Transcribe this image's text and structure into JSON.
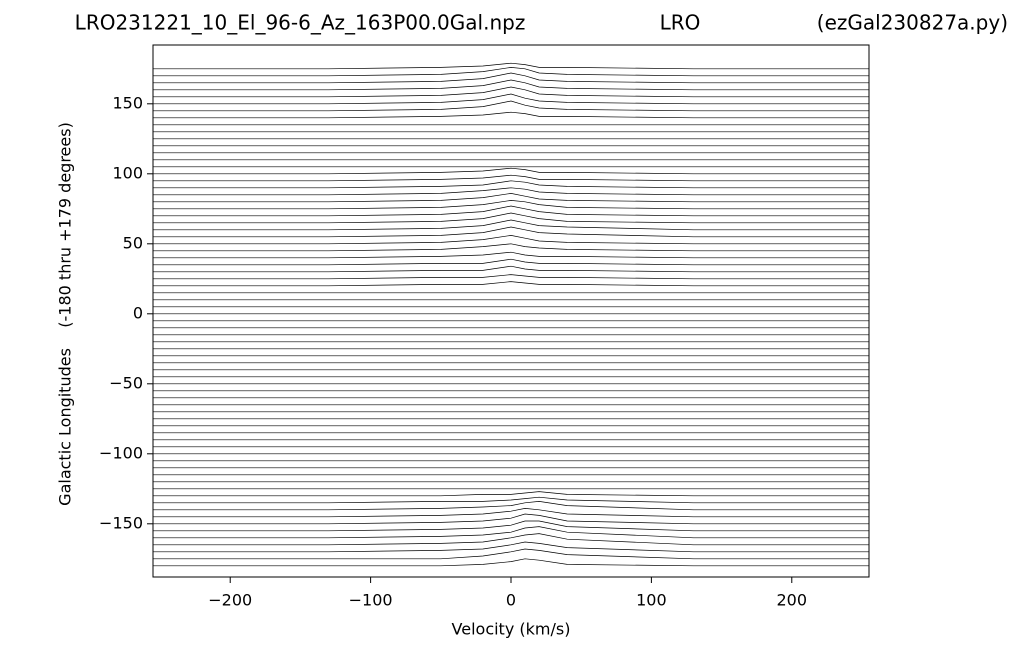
{
  "chart_data": {
    "type": "ridgeline",
    "title": "LRO231221_10_El_96-6_Az_163P00.0Gal.npz",
    "subtitle": "LRO",
    "annotation": "(ezGal230827a.py)",
    "xlabel": "Velocity (km/s)",
    "ylabel": "Galactic Longitudes    (-180 thru +179 degrees)",
    "color": "#000000",
    "xlim": [
      -255,
      255
    ],
    "ylim": [
      -188,
      192
    ],
    "xticks": [
      {
        "value": -200,
        "label": "−200"
      },
      {
        "value": -100,
        "label": "−100"
      },
      0,
      100,
      200
    ],
    "yticks": [
      {
        "value": -150,
        "label": "−150"
      },
      {
        "value": -100,
        "label": "−100"
      },
      {
        "value": -50,
        "label": "−50"
      },
      0,
      50,
      100,
      150
    ],
    "x": [
      -255,
      -130,
      -50,
      -20,
      0,
      10,
      20,
      40,
      130,
      255
    ],
    "series": [
      {
        "values": [
          -180,
          -180,
          -180,
          -179,
          -177,
          -175,
          -176,
          -179,
          -180,
          -180
        ]
      },
      {
        "values": [
          -175,
          -175,
          -175,
          -173,
          -170,
          -168,
          -169,
          -172,
          -175,
          -175
        ]
      },
      {
        "values": [
          -170,
          -170,
          -169,
          -168,
          -165,
          -163,
          -164,
          -167,
          -170,
          -170
        ]
      },
      {
        "values": [
          -165,
          -165,
          -164,
          -163,
          -160,
          -158,
          -157,
          -161,
          -165,
          -165
        ]
      },
      {
        "values": [
          -160,
          -160,
          -159,
          -158,
          -156,
          -153,
          -152,
          -156,
          -160,
          -160
        ]
      },
      {
        "values": [
          -155,
          -155,
          -154,
          -153,
          -151,
          -148,
          -148,
          -152,
          -155,
          -155
        ]
      },
      {
        "values": [
          -150,
          -150,
          -149,
          -148,
          -146,
          -143,
          -144,
          -148,
          -150,
          -150
        ]
      },
      {
        "values": [
          -145,
          -145,
          -144,
          -143,
          -141,
          -139,
          -140,
          -143,
          -145,
          -145
        ]
      },
      {
        "values": [
          -140,
          -140,
          -139,
          -138,
          -137,
          -135,
          -134,
          -137,
          -140,
          -140
        ]
      },
      {
        "values": [
          -135,
          -135,
          -134,
          -134,
          -133,
          -132,
          -131,
          -133,
          -135,
          -135
        ]
      },
      {
        "values": [
          -130,
          -130,
          -130,
          -129,
          -129,
          -128,
          -127,
          -129,
          -130,
          -130
        ]
      },
      {
        "values": [
          -125,
          -125,
          -125,
          -125,
          -125,
          -125,
          -125,
          -125,
          -125,
          -125
        ]
      },
      {
        "values": [
          -120,
          -120,
          -120,
          -120,
          -120,
          -120,
          -120,
          -120,
          -120,
          -120
        ]
      },
      {
        "values": [
          -115,
          -115,
          -115,
          -115,
          -115,
          -115,
          -115,
          -115,
          -115,
          -115
        ]
      },
      {
        "values": [
          -110,
          -110,
          -110,
          -110,
          -110,
          -110,
          -110,
          -110,
          -110,
          -110
        ]
      },
      {
        "values": [
          -105,
          -105,
          -105,
          -105,
          -105,
          -105,
          -105,
          -105,
          -105,
          -105
        ]
      },
      {
        "values": [
          -100,
          -100,
          -100,
          -100,
          -100,
          -100,
          -100,
          -100,
          -100,
          -100
        ]
      },
      {
        "values": [
          -95,
          -95,
          -95,
          -95,
          -95,
          -95,
          -95,
          -95,
          -95,
          -95
        ]
      },
      {
        "values": [
          -90,
          -90,
          -90,
          -90,
          -90,
          -90,
          -90,
          -90,
          -90,
          -90
        ]
      },
      {
        "values": [
          -85,
          -85,
          -85,
          -85,
          -85,
          -85,
          -85,
          -85,
          -85,
          -85
        ]
      },
      {
        "values": [
          -80,
          -80,
          -80,
          -80,
          -80,
          -80,
          -80,
          -80,
          -80,
          -80
        ]
      },
      {
        "values": [
          -75,
          -75,
          -75,
          -75,
          -75,
          -75,
          -75,
          -75,
          -75,
          -75
        ]
      },
      {
        "values": [
          -70,
          -70,
          -70,
          -70,
          -70,
          -70,
          -70,
          -70,
          -70,
          -70
        ]
      },
      {
        "values": [
          -65,
          -65,
          -65,
          -65,
          -65,
          -65,
          -65,
          -65,
          -65,
          -65
        ]
      },
      {
        "values": [
          -60,
          -60,
          -60,
          -60,
          -60,
          -60,
          -60,
          -60,
          -60,
          -60
        ]
      },
      {
        "values": [
          -55,
          -55,
          -55,
          -55,
          -55,
          -55,
          -55,
          -55,
          -55,
          -55
        ]
      },
      {
        "values": [
          -50,
          -50,
          -50,
          -50,
          -50,
          -50,
          -50,
          -50,
          -50,
          -50
        ]
      },
      {
        "values": [
          -45,
          -45,
          -45,
          -45,
          -45,
          -45,
          -45,
          -45,
          -45,
          -45
        ]
      },
      {
        "values": [
          -40,
          -40,
          -40,
          -40,
          -40,
          -40,
          -40,
          -40,
          -40,
          -40
        ]
      },
      {
        "values": [
          -35,
          -35,
          -35,
          -35,
          -35,
          -35,
          -35,
          -35,
          -35,
          -35
        ]
      },
      {
        "values": [
          -30,
          -30,
          -30,
          -30,
          -30,
          -30,
          -30,
          -30,
          -30,
          -30
        ]
      },
      {
        "values": [
          -25,
          -25,
          -25,
          -25,
          -25,
          -25,
          -25,
          -25,
          -25,
          -25
        ]
      },
      {
        "values": [
          -20,
          -20,
          -20,
          -20,
          -20,
          -20,
          -20,
          -20,
          -20,
          -20
        ]
      },
      {
        "values": [
          -15,
          -15,
          -15,
          -15,
          -15,
          -15,
          -15,
          -15,
          -15,
          -15
        ]
      },
      {
        "values": [
          -10,
          -10,
          -10,
          -10,
          -10,
          -10,
          -10,
          -10,
          -10,
          -10
        ]
      },
      {
        "values": [
          -5,
          -5,
          -5,
          -5,
          -5,
          -5,
          -5,
          -5,
          -5,
          -5
        ]
      },
      {
        "values": [
          0,
          0,
          0,
          0,
          0,
          0,
          0,
          0,
          0,
          0
        ]
      },
      {
        "values": [
          5,
          5,
          5,
          5,
          5,
          5,
          5,
          5,
          5,
          5
        ]
      },
      {
        "values": [
          10,
          10,
          10,
          10,
          10,
          10,
          10,
          10,
          10,
          10
        ]
      },
      {
        "values": [
          15,
          15,
          15,
          15,
          15,
          15,
          15,
          15,
          15,
          15
        ]
      },
      {
        "values": [
          20,
          20,
          21,
          21,
          23,
          22,
          21,
          21,
          20,
          20
        ]
      },
      {
        "values": [
          25,
          25,
          26,
          26,
          28,
          27,
          26,
          26,
          25,
          25
        ]
      },
      {
        "values": [
          30,
          30,
          31,
          31,
          34,
          32,
          31,
          31,
          30,
          30
        ]
      },
      {
        "values": [
          35,
          35,
          36,
          36,
          39,
          37,
          36,
          36,
          35,
          35
        ]
      },
      {
        "values": [
          40,
          40,
          41,
          42,
          44,
          42,
          41,
          41,
          40,
          40
        ]
      },
      {
        "values": [
          45,
          45,
          46,
          48,
          50,
          48,
          47,
          46,
          45,
          45
        ]
      },
      {
        "values": [
          50,
          50,
          51,
          53,
          56,
          54,
          52,
          51,
          50,
          50
        ]
      },
      {
        "values": [
          55,
          55,
          56,
          58,
          62,
          60,
          58,
          57,
          55,
          55
        ]
      },
      {
        "values": [
          60,
          60,
          61,
          63,
          67,
          65,
          63,
          62,
          60,
          60
        ]
      },
      {
        "values": [
          65,
          65,
          66,
          68,
          72,
          70,
          68,
          66,
          65,
          65
        ]
      },
      {
        "values": [
          70,
          70,
          71,
          73,
          77,
          75,
          73,
          71,
          70,
          70
        ]
      },
      {
        "values": [
          75,
          75,
          76,
          78,
          81,
          80,
          78,
          76,
          75,
          75
        ]
      },
      {
        "values": [
          80,
          80,
          81,
          83,
          86,
          84,
          82,
          81,
          80,
          80
        ]
      },
      {
        "values": [
          85,
          85,
          86,
          88,
          90,
          89,
          87,
          86,
          85,
          85
        ]
      },
      {
        "values": [
          90,
          90,
          91,
          92,
          95,
          94,
          92,
          91,
          90,
          90
        ]
      },
      {
        "values": [
          95,
          95,
          96,
          97,
          99,
          98,
          96,
          96,
          95,
          95
        ]
      },
      {
        "values": [
          100,
          100,
          101,
          102,
          104,
          103,
          101,
          101,
          100,
          100
        ]
      },
      {
        "values": [
          105,
          105,
          105,
          105,
          105,
          105,
          105,
          105,
          105,
          105
        ]
      },
      {
        "values": [
          110,
          110,
          110,
          110,
          110,
          110,
          110,
          110,
          110,
          110
        ]
      },
      {
        "values": [
          115,
          115,
          115,
          115,
          115,
          115,
          115,
          115,
          115,
          115
        ]
      },
      {
        "values": [
          120,
          120,
          120,
          120,
          120,
          120,
          120,
          120,
          120,
          120
        ]
      },
      {
        "values": [
          125,
          125,
          125,
          125,
          125,
          125,
          125,
          125,
          125,
          125
        ]
      },
      {
        "values": [
          130,
          130,
          130,
          130,
          130,
          130,
          130,
          130,
          130,
          130
        ]
      },
      {
        "values": [
          135,
          135,
          135,
          135,
          135,
          135,
          135,
          135,
          135,
          135
        ]
      },
      {
        "values": [
          140,
          140,
          141,
          142,
          144,
          143,
          141,
          141,
          140,
          140
        ]
      },
      {
        "values": [
          145,
          145,
          146,
          148,
          152,
          149,
          147,
          146,
          145,
          145
        ]
      },
      {
        "values": [
          150,
          150,
          151,
          153,
          157,
          154,
          152,
          151,
          150,
          150
        ]
      },
      {
        "values": [
          155,
          155,
          156,
          158,
          162,
          160,
          157,
          156,
          155,
          155
        ]
      },
      {
        "values": [
          160,
          160,
          161,
          163,
          167,
          165,
          162,
          161,
          160,
          160
        ]
      },
      {
        "values": [
          165,
          165,
          166,
          168,
          172,
          170,
          167,
          166,
          165,
          165
        ]
      },
      {
        "values": [
          170,
          170,
          171,
          173,
          176,
          175,
          172,
          171,
          170,
          170
        ]
      },
      {
        "values": [
          175,
          175,
          176,
          177,
          179,
          178,
          176,
          176,
          175,
          175
        ]
      }
    ]
  }
}
